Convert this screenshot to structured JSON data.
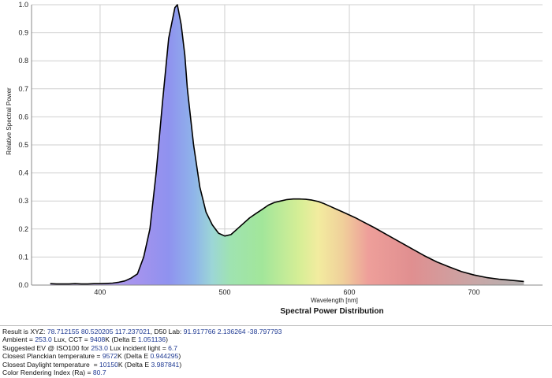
{
  "colors": {
    "grid": "#cfcfcf",
    "curve": "#000000",
    "value_text": "#1f3a93",
    "spectrum_stops": [
      {
        "nm": 380,
        "color": "#b9a3e8"
      },
      {
        "nm": 430,
        "color": "#a493ee"
      },
      {
        "nm": 455,
        "color": "#8f92ef"
      },
      {
        "nm": 475,
        "color": "#8fb4ea"
      },
      {
        "nm": 490,
        "color": "#9cd6d6"
      },
      {
        "nm": 505,
        "color": "#9fe3b0"
      },
      {
        "nm": 530,
        "color": "#a2e69a"
      },
      {
        "nm": 560,
        "color": "#d6ee96"
      },
      {
        "nm": 575,
        "color": "#f2ec9f"
      },
      {
        "nm": 595,
        "color": "#f0cf9a"
      },
      {
        "nm": 615,
        "color": "#ee9f9a"
      },
      {
        "nm": 650,
        "color": "#e08f90"
      },
      {
        "nm": 700,
        "color": "#c8a6a6"
      },
      {
        "nm": 745,
        "color": "#b3b3b3"
      }
    ]
  },
  "chart_data": {
    "type": "area",
    "title": "Spectral Power Distribution",
    "xlabel": "Wavelength [nm]",
    "ylabel": "Relative Spectral Power",
    "xlim": [
      345,
      755
    ],
    "ylim": [
      0,
      1.0
    ],
    "x_ticks": [
      400,
      500,
      600,
      700
    ],
    "y_ticks": [
      0.0,
      0.1,
      0.2,
      0.3,
      0.4,
      0.5,
      0.6,
      0.7,
      0.8,
      0.9,
      1.0
    ],
    "x_tick_labels": [
      "400",
      "500",
      "600",
      "700"
    ],
    "y_tick_labels": [
      "0.0",
      "0.1",
      "0.2",
      "0.3",
      "0.4",
      "0.5",
      "0.6",
      "0.7",
      "0.8",
      "0.9",
      "1.0"
    ],
    "grid": true,
    "x": [
      360,
      365,
      370,
      375,
      380,
      385,
      390,
      395,
      400,
      405,
      410,
      415,
      420,
      425,
      430,
      435,
      440,
      445,
      450,
      455,
      460,
      462,
      465,
      468,
      470,
      475,
      480,
      485,
      490,
      495,
      500,
      505,
      510,
      515,
      520,
      525,
      530,
      535,
      540,
      545,
      550,
      555,
      560,
      565,
      570,
      575,
      580,
      585,
      590,
      595,
      600,
      605,
      610,
      620,
      630,
      640,
      650,
      660,
      670,
      680,
      690,
      700,
      710,
      720,
      730,
      740
    ],
    "y": [
      0.005,
      0.004,
      0.004,
      0.004,
      0.005,
      0.004,
      0.004,
      0.005,
      0.005,
      0.006,
      0.007,
      0.01,
      0.015,
      0.025,
      0.04,
      0.1,
      0.2,
      0.4,
      0.65,
      0.88,
      0.99,
      1.0,
      0.93,
      0.82,
      0.7,
      0.5,
      0.35,
      0.26,
      0.215,
      0.185,
      0.175,
      0.18,
      0.2,
      0.22,
      0.24,
      0.255,
      0.27,
      0.285,
      0.295,
      0.3,
      0.305,
      0.307,
      0.307,
      0.306,
      0.303,
      0.298,
      0.29,
      0.28,
      0.27,
      0.26,
      0.25,
      0.24,
      0.228,
      0.205,
      0.18,
      0.155,
      0.13,
      0.105,
      0.083,
      0.065,
      0.048,
      0.036,
      0.027,
      0.021,
      0.017,
      0.013
    ]
  },
  "results": [
    {
      "label": "Result is XYZ: ",
      "value": "78.712155 80.520205 117.237021",
      "label2": ", D50 Lab: ",
      "value2": "91.917766 2.136264 -38.797793",
      "tail": ""
    },
    {
      "label": "Ambient = ",
      "value": "253.0",
      "label2": " Lux, CCT = ",
      "value2": "9408",
      "tail": "K (Delta E ",
      "value3": "1.051136",
      "end": ")"
    },
    {
      "label": "Suggested EV @ ISO100 for ",
      "value": "253.0",
      "label2": " Lux incident light = ",
      "value2": "6.7",
      "tail": ""
    },
    {
      "label": "Closest Planckian temperature = ",
      "value": "9572",
      "label2": "K (Delta E ",
      "value2": "0.944295",
      "tail": ")"
    },
    {
      "label": "Closest Daylight temperature  = ",
      "value": "10150",
      "label2": "K (Delta E ",
      "value2": "3.987841",
      "tail": ")"
    },
    {
      "label": "Color Rendering Index (Ra) = ",
      "value": "80.7",
      "label2": "",
      "value2": "",
      "tail": ""
    }
  ]
}
